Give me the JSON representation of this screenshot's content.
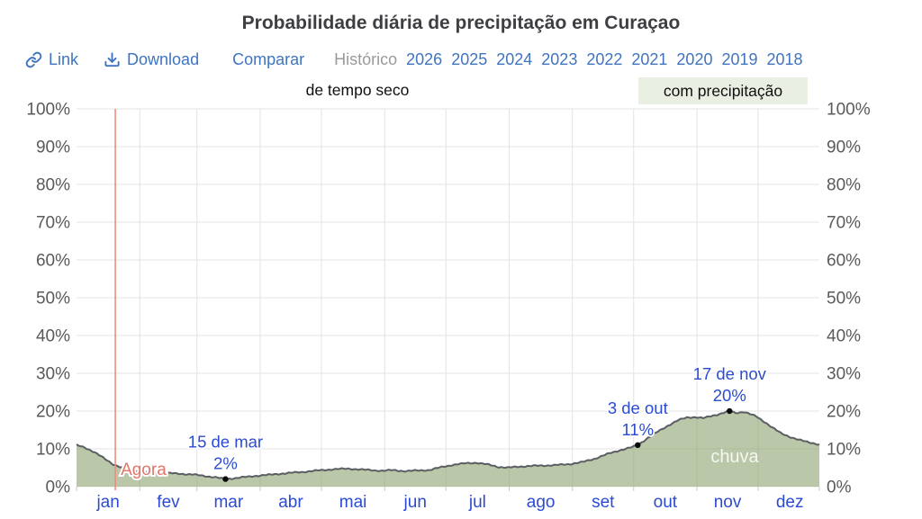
{
  "title": "Probabilidade diária de precipitação em Curaçao",
  "toolbar": {
    "link_label": "Link",
    "download_label": "Download",
    "compare_label": "Comparar",
    "historical_label": "Histórico",
    "years": [
      "2026",
      "2025",
      "2024",
      "2023",
      "2022",
      "2021",
      "2020",
      "2019",
      "2018"
    ]
  },
  "colors": {
    "toolbar_link": "#3f74c0",
    "historical_inactive": "#9a9a9a",
    "month_label": "#2b4bd3",
    "annotation": "#2b4bd3",
    "axis_label": "#5a5a5a",
    "grid": "#e3e3e3",
    "tick": "#c9c9c9",
    "area_fill_rgba": "rgba(143,164,115,0.62)",
    "line": "#5b5e63",
    "dot": "#0a0a0a",
    "now_line": "#ef8d7e",
    "now_label": "#e0756a",
    "wet_label_bg": "#e9efe2",
    "area_text": "rgba(255,255,255,0.85)"
  },
  "chart_data": {
    "type": "area",
    "title": "Probabilidade diária de precipitação em Curaçao",
    "dry_label": "de tempo seco",
    "wet_label": "com precipitação",
    "area_label": "chuva",
    "ylim": [
      0,
      100
    ],
    "y_ticks": [
      "0%",
      "10%",
      "20%",
      "30%",
      "40%",
      "50%",
      "60%",
      "70%",
      "80%",
      "90%",
      "100%"
    ],
    "months": [
      "jan",
      "fev",
      "mar",
      "abr",
      "mai",
      "jun",
      "jul",
      "ago",
      "set",
      "out",
      "nov",
      "dez"
    ],
    "month_start_days": [
      0,
      31,
      59,
      90,
      120,
      151,
      181,
      212,
      243,
      273,
      304,
      334,
      365
    ],
    "x_unit": "day_of_year",
    "series": [
      {
        "name": "chuva",
        "points": [
          [
            1,
            11.0
          ],
          [
            5,
            10.4
          ],
          [
            9,
            9.3
          ],
          [
            13,
            8.0
          ],
          [
            16,
            7.0
          ],
          [
            19,
            5.9
          ],
          [
            23,
            5.0
          ],
          [
            27,
            4.4
          ],
          [
            31,
            4.05
          ],
          [
            38,
            3.8
          ],
          [
            45,
            3.6
          ],
          [
            52,
            3.4
          ],
          [
            59,
            3.15
          ],
          [
            64,
            2.8
          ],
          [
            69,
            2.45
          ],
          [
            74,
            2.0
          ],
          [
            78,
            2.2
          ],
          [
            83,
            2.5
          ],
          [
            90,
            2.9
          ],
          [
            97,
            3.2
          ],
          [
            105,
            3.6
          ],
          [
            112,
            3.9
          ],
          [
            120,
            4.3
          ],
          [
            127,
            4.6
          ],
          [
            134,
            4.75
          ],
          [
            141,
            4.5
          ],
          [
            147,
            4.3
          ],
          [
            151,
            4.2
          ],
          [
            156,
            4.35
          ],
          [
            162,
            4.1
          ],
          [
            168,
            4.25
          ],
          [
            174,
            4.4
          ],
          [
            181,
            5.3
          ],
          [
            186,
            5.8
          ],
          [
            192,
            6.2
          ],
          [
            197,
            6.3
          ],
          [
            203,
            5.8
          ],
          [
            208,
            5.2
          ],
          [
            212,
            5.0
          ],
          [
            218,
            5.3
          ],
          [
            225,
            5.5
          ],
          [
            232,
            5.6
          ],
          [
            239,
            5.8
          ],
          [
            243,
            6.0
          ],
          [
            249,
            6.5
          ],
          [
            255,
            7.4
          ],
          [
            261,
            8.6
          ],
          [
            267,
            9.6
          ],
          [
            273,
            10.4
          ],
          [
            276,
            11.0
          ],
          [
            281,
            12.9
          ],
          [
            286,
            14.6
          ],
          [
            291,
            16.2
          ],
          [
            296,
            17.6
          ],
          [
            300,
            18.3
          ],
          [
            304,
            18.4
          ],
          [
            308,
            18.1
          ],
          [
            312,
            18.7
          ],
          [
            316,
            19.2
          ],
          [
            321,
            20.0
          ],
          [
            324,
            19.5
          ],
          [
            328,
            19.8
          ],
          [
            331,
            19.2
          ],
          [
            334,
            18.6
          ],
          [
            338,
            17.2
          ],
          [
            342,
            15.6
          ],
          [
            346,
            14.2
          ],
          [
            350,
            13.3
          ],
          [
            354,
            12.5
          ],
          [
            358,
            12.0
          ],
          [
            362,
            11.5
          ],
          [
            365,
            11.1
          ]
        ]
      }
    ],
    "annotations": [
      {
        "day": 74,
        "value": 2,
        "date_label": "15 de mar",
        "value_label": "2%"
      },
      {
        "day": 276,
        "value": 11,
        "date_label": "3 de out",
        "value_label": "11%"
      },
      {
        "day": 321,
        "value": 20,
        "date_label": "17 de nov",
        "value_label": "20%"
      }
    ],
    "now_marker": {
      "day": 20,
      "label": "Agora"
    }
  }
}
